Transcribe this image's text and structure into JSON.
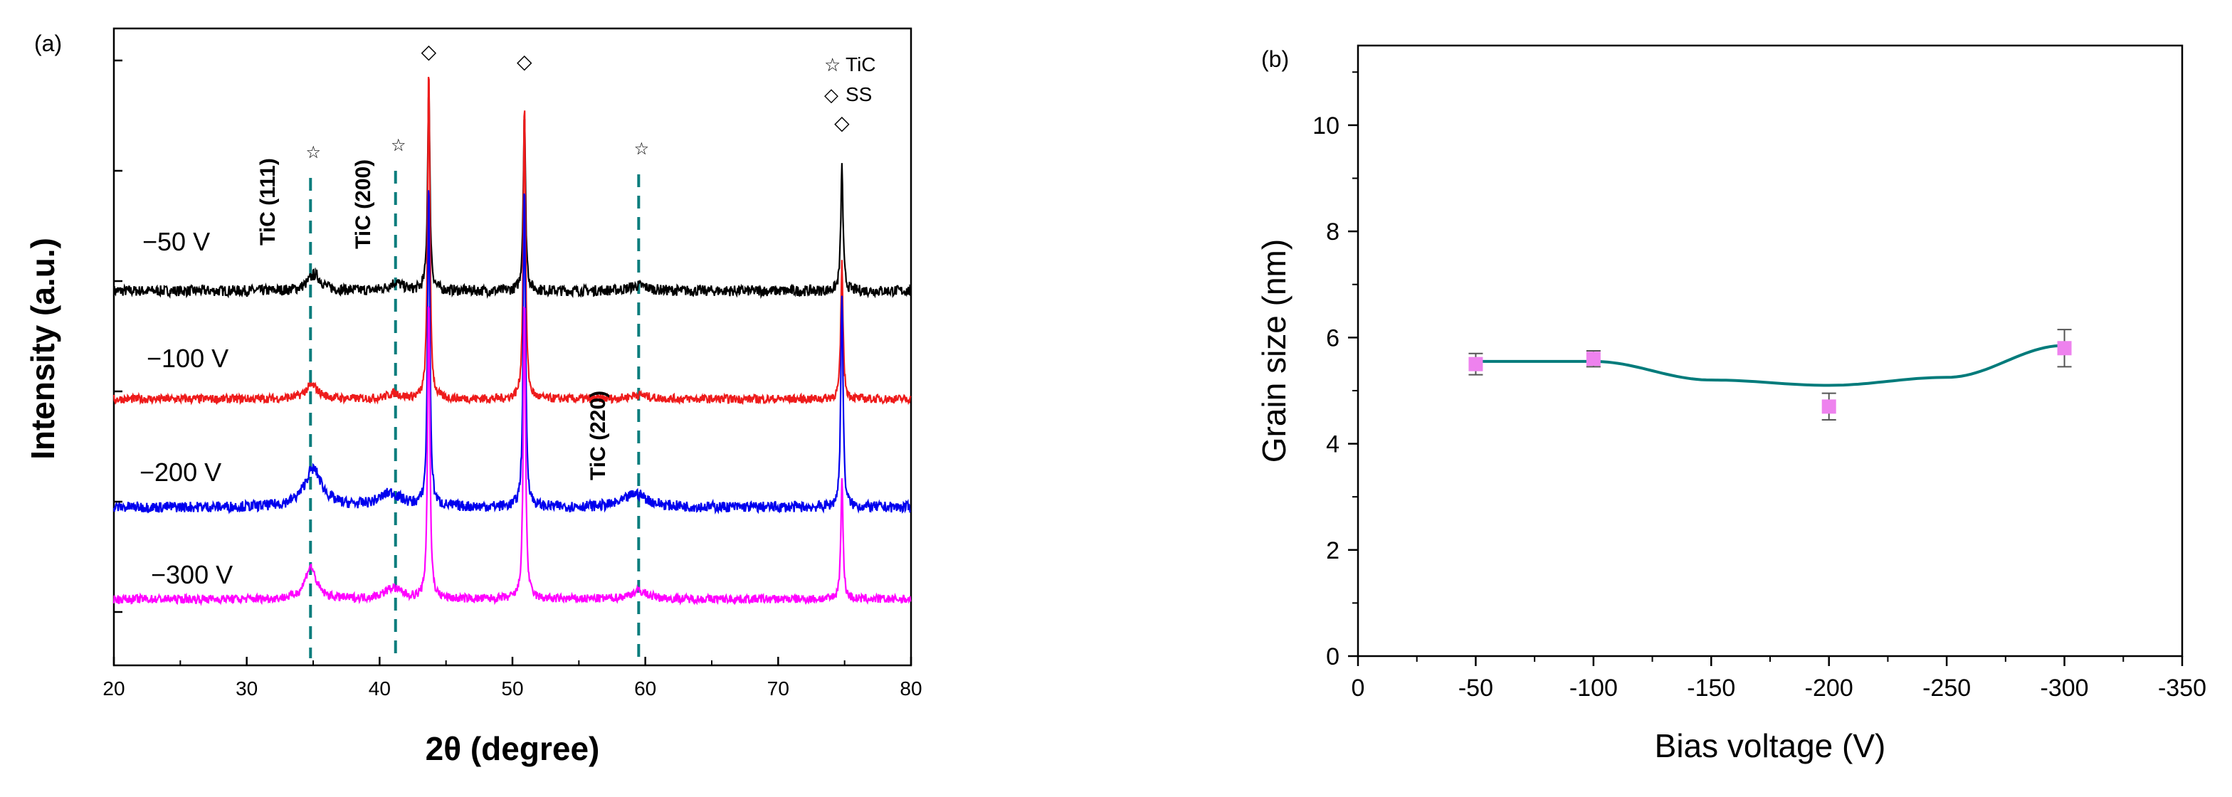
{
  "chart_data": [
    {
      "type": "line",
      "panel_label": "(a)",
      "xlabel": "2θ (degree)",
      "ylabel": "Intensity (a.u.)",
      "xlim": [
        20,
        80
      ],
      "xticks": [
        20,
        30,
        40,
        50,
        60,
        70,
        80
      ],
      "yticks_unlabeled": 6,
      "series": [
        {
          "name": "−50 V",
          "color": "#000000",
          "baseline": 0.62,
          "noise": 0.01,
          "peaks": [
            [
              35.1,
              0.03,
              0.6
            ],
            [
              41.2,
              0.015,
              0.6
            ],
            [
              43.7,
              0.38,
              0.1
            ],
            [
              50.9,
              0.33,
              0.1
            ],
            [
              74.8,
              0.23,
              0.1
            ],
            [
              59.5,
              0.01,
              0.8
            ]
          ]
        },
        {
          "name": "−100 V",
          "color": "#ee1b1b",
          "baseline": 0.42,
          "noise": 0.008,
          "peaks": [
            [
              34.9,
              0.025,
              0.6
            ],
            [
              41.1,
              0.01,
              0.6
            ],
            [
              43.7,
              0.62,
              0.1
            ],
            [
              50.9,
              0.55,
              0.1
            ],
            [
              74.8,
              0.25,
              0.1
            ],
            [
              59.5,
              0.008,
              0.8
            ]
          ]
        },
        {
          "name": "−200 V",
          "color": "#0000ee",
          "baseline": 0.22,
          "noise": 0.01,
          "peaks": [
            [
              35.0,
              0.07,
              0.8
            ],
            [
              40.8,
              0.025,
              1.0
            ],
            [
              43.7,
              0.6,
              0.1
            ],
            [
              50.9,
              0.6,
              0.1
            ],
            [
              74.8,
              0.4,
              0.1
            ],
            [
              59.3,
              0.025,
              1.0
            ]
          ]
        },
        {
          "name": "−300 V",
          "color": "#ff00ff",
          "baseline": 0.05,
          "noise": 0.008,
          "peaks": [
            [
              34.8,
              0.06,
              0.5
            ],
            [
              41.0,
              0.02,
              0.8
            ],
            [
              43.7,
              0.56,
              0.1
            ],
            [
              50.9,
              0.56,
              0.1
            ],
            [
              74.8,
              0.22,
              0.1
            ],
            [
              59.5,
              0.015,
              0.8
            ]
          ]
        }
      ],
      "reference_lines": [
        {
          "x": 34.8,
          "label": "TiC (111)",
          "marker": "☆"
        },
        {
          "x": 41.2,
          "label": "TiC (200)",
          "marker": "☆"
        },
        {
          "x": 59.5,
          "label": "TiC (220)",
          "marker": "☆"
        }
      ],
      "ss_markers": [
        43.7,
        50.9,
        74.8
      ],
      "legend": [
        {
          "symbol": "☆",
          "label": "TiC"
        },
        {
          "symbol": "◇",
          "label": "SS"
        }
      ]
    },
    {
      "type": "scatter",
      "panel_label": "(b)",
      "xlabel": "Bias voltage (V)",
      "ylabel": "Grain size (nm)",
      "xlim": [
        0,
        -350
      ],
      "ylim": [
        0,
        11.5
      ],
      "xticks": [
        0,
        -50,
        -100,
        -150,
        -200,
        -250,
        -300,
        -350
      ],
      "xtick_labels": [
        "0",
        "-50",
        "-100",
        "-150",
        "-200",
        "-250",
        "-300",
        "-350"
      ],
      "yticks": [
        0,
        2,
        4,
        6,
        8,
        10
      ],
      "points": [
        {
          "x": -50,
          "y": 5.5,
          "err": 0.2
        },
        {
          "x": -100,
          "y": 5.6,
          "err": 0.15
        },
        {
          "x": -200,
          "y": 4.7,
          "err": 0.25
        },
        {
          "x": -300,
          "y": 5.8,
          "err": 0.35
        }
      ],
      "fit_curve": {
        "x": [
          -50,
          -100,
          -150,
          -200,
          -250,
          -300
        ],
        "y": [
          5.55,
          5.55,
          5.2,
          5.1,
          5.25,
          5.85
        ]
      },
      "marker_color": "#ee82ee",
      "line_color": "#007b7b"
    }
  ]
}
